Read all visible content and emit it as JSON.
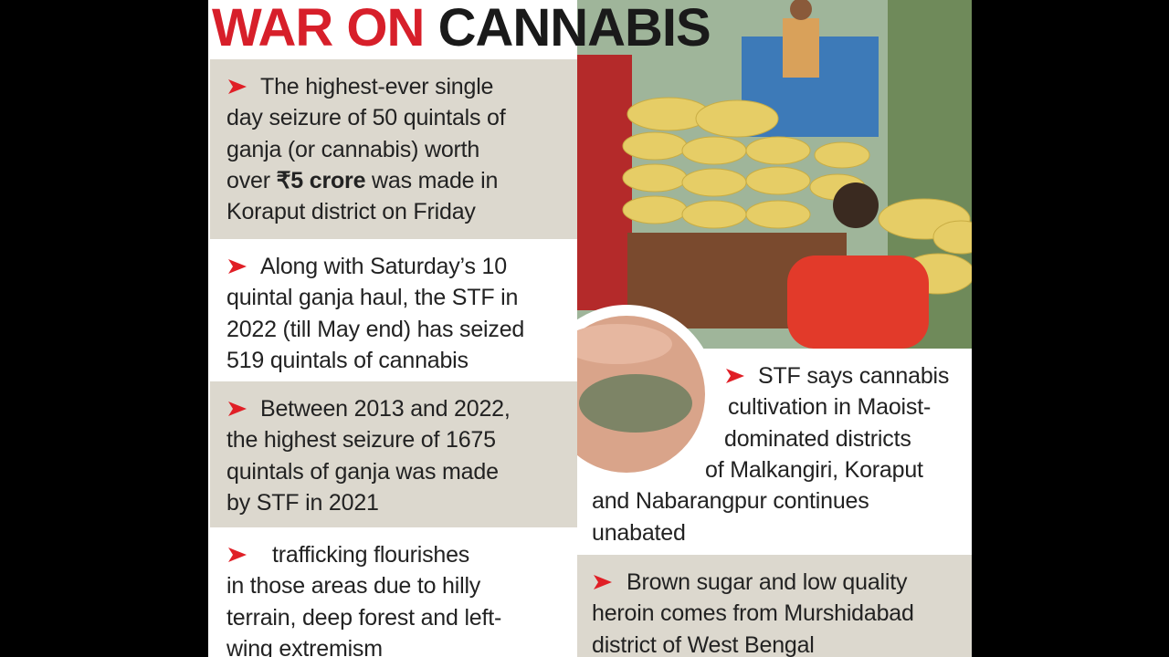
{
  "header": {
    "title": [
      "WAR ON",
      "CANNABIS"
    ]
  },
  "left_items": [
    {
      "lines": [
        "The highest-ever single",
        "day seizure of 50 quintals of",
        "ganja (or cannabis) worth",
        [
          "over ",
          "₹5 crore",
          " was made in"
        ],
        "Koraput district on Friday"
      ]
    },
    {
      "lines": [
        "Along with Saturday’s 10",
        "quintal ganja haul, the STF in",
        "2022 (till May end) has seized",
        "519 quintals of cannabis"
      ]
    },
    {
      "lines": [
        "Between 2013 and 2022,",
        "the highest seizure of 1675",
        "quintals of ganja was made",
        "by STF in 2021"
      ]
    },
    {
      "lines": [
        "trafficking flourishes",
        "in those areas due to hilly",
        "terrain, deep forest and left-",
        "wing extremism"
      ]
    }
  ],
  "right_items": [
    {
      "lines": [
        "STF says cannabis",
        "cultivation in Maoist-",
        "dominated districts",
        "of Malkangiri, Koraput",
        "and Nabarangpur continues",
        "unabated"
      ]
    },
    {
      "lines": [
        "Brown sugar and low quality",
        "heroin comes from Murshidabad",
        "district of West Bengal"
      ]
    }
  ]
}
